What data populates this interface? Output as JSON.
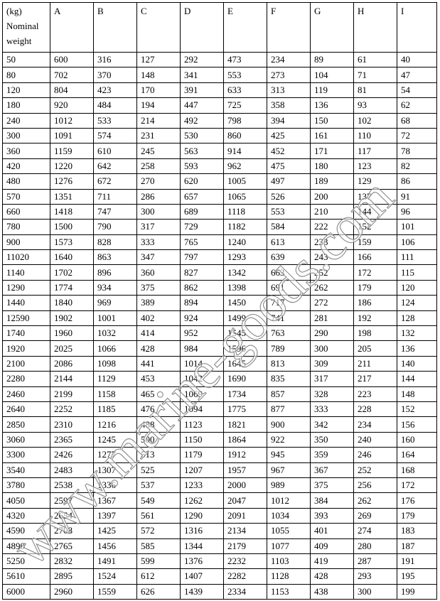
{
  "table": {
    "header": [
      "(kg) Nominal weight",
      "A",
      "B",
      "C",
      "D",
      "E",
      "F",
      "G",
      "H",
      "I"
    ],
    "header_first_lines": [
      "(kg)",
      "Nominal",
      "weight"
    ],
    "rows": [
      [
        "50",
        "600",
        "316",
        "127",
        "292",
        "473",
        "234",
        "89",
        "61",
        "40"
      ],
      [
        "80",
        "702",
        "370",
        "148",
        "341",
        "553",
        "273",
        "104",
        "71",
        "47"
      ],
      [
        "120",
        "804",
        "423",
        "170",
        "391",
        "633",
        "313",
        "119",
        "81",
        "54"
      ],
      [
        "180",
        "920",
        "484",
        "194",
        "447",
        "725",
        "358",
        "136",
        "93",
        "62"
      ],
      [
        "240",
        "1012",
        "533",
        "214",
        "492",
        "798",
        "394",
        "150",
        "102",
        "68"
      ],
      [
        "300",
        "1091",
        "574",
        "231",
        "530",
        "860",
        "425",
        "161",
        "110",
        "72"
      ],
      [
        "360",
        "1159",
        "610",
        "245",
        "563",
        "914",
        "452",
        "171",
        "117",
        "78"
      ],
      [
        "420",
        "1220",
        "642",
        "258",
        "593",
        "962",
        "475",
        "180",
        "123",
        "82"
      ],
      [
        "480",
        "1276",
        "672",
        "270",
        "620",
        "1005",
        "497",
        "189",
        "129",
        "86"
      ],
      [
        "570",
        "1351",
        "711",
        "286",
        "657",
        "1065",
        "526",
        "200",
        "137",
        "91"
      ],
      [
        "660",
        "1418",
        "747",
        "300",
        "689",
        "1118",
        "553",
        "210",
        "144",
        "96"
      ],
      [
        "780",
        "1500",
        "790",
        "317",
        "729",
        "1182",
        "584",
        "222",
        "152",
        "101"
      ],
      [
        "900",
        "1573",
        "828",
        "333",
        "765",
        "1240",
        "613",
        "233",
        "159",
        "106"
      ],
      [
        "11020",
        "1640",
        "863",
        "347",
        "797",
        "1293",
        "639",
        "243",
        "166",
        "111"
      ],
      [
        "1140",
        "1702",
        "896",
        "360",
        "827",
        "1342",
        "663",
        "252",
        "172",
        "115"
      ],
      [
        "1290",
        "1774",
        "934",
        "375",
        "862",
        "1398",
        "691",
        "262",
        "179",
        "120"
      ],
      [
        "1440",
        "1840",
        "969",
        "389",
        "894",
        "1450",
        "717",
        "272",
        "186",
        "124"
      ],
      [
        "12590",
        "1902",
        "1001",
        "402",
        "924",
        "1499",
        "741",
        "281",
        "192",
        "128"
      ],
      [
        "1740",
        "1960",
        "1032",
        "414",
        "952",
        "1545",
        "763",
        "290",
        "198",
        "132"
      ],
      [
        "1920",
        "2025",
        "1066",
        "428",
        "984",
        "1596",
        "789",
        "300",
        "205",
        "136"
      ],
      [
        "2100",
        "2086",
        "1098",
        "441",
        "1014",
        "1645",
        "813",
        "309",
        "211",
        "140"
      ],
      [
        "2280",
        "2144",
        "1129",
        "453",
        "1042",
        "1690",
        "835",
        "317",
        "217",
        "144"
      ],
      [
        "2460",
        "2199",
        "1158",
        "465",
        "1069",
        "1734",
        "857",
        "328",
        "223",
        "148"
      ],
      [
        "2640",
        "2252",
        "1185",
        "476",
        "1094",
        "1775",
        "877",
        "333",
        "228",
        "152"
      ],
      [
        "2850",
        "2310",
        "1216",
        "488",
        "1123",
        "1821",
        "900",
        "342",
        "234",
        "156"
      ],
      [
        "3060",
        "2365",
        "1245",
        "500",
        "1150",
        "1864",
        "922",
        "350",
        "240",
        "160"
      ],
      [
        "3300",
        "2426",
        "1277",
        "513",
        "1179",
        "1912",
        "945",
        "359",
        "246",
        "164"
      ],
      [
        "3540",
        "2483",
        "1307",
        "525",
        "1207",
        "1957",
        "967",
        "367",
        "252",
        "168"
      ],
      [
        "3780",
        "2538",
        "1336",
        "537",
        "1233",
        "2000",
        "989",
        "375",
        "256",
        "172"
      ],
      [
        "4050",
        "2597",
        "1367",
        "549",
        "1262",
        "2047",
        "1012",
        "384",
        "262",
        "176"
      ],
      [
        "4320",
        "2654",
        "1397",
        "561",
        "1290",
        "2091",
        "1034",
        "393",
        "269",
        "179"
      ],
      [
        "4590",
        "2708",
        "1425",
        "572",
        "1316",
        "2134",
        "1055",
        "401",
        "274",
        "183"
      ],
      [
        "4890",
        "2765",
        "1456",
        "585",
        "1344",
        "2179",
        "1077",
        "409",
        "280",
        "187"
      ],
      [
        "5250",
        "2832",
        "1491",
        "599",
        "1376",
        "2232",
        "1103",
        "419",
        "287",
        "191"
      ],
      [
        "5610",
        "2895",
        "1524",
        "612",
        "1407",
        "2282",
        "1128",
        "428",
        "293",
        "195"
      ],
      [
        "6000",
        "2960",
        "1559",
        "626",
        "1439",
        "2334",
        "1153",
        "438",
        "300",
        "199"
      ]
    ]
  },
  "watermark": {
    "text": "www.marine-goods.com"
  }
}
